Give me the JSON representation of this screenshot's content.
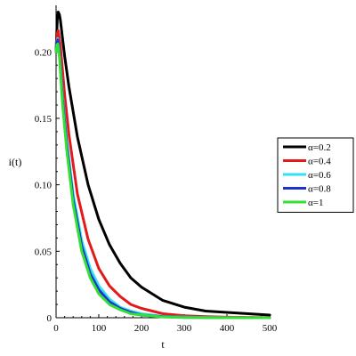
{
  "chart_data": {
    "type": "line",
    "xlabel": "t",
    "ylabel": "i(t)",
    "xlim": [
      0,
      500
    ],
    "ylim": [
      0,
      0.235
    ],
    "xticks": [
      "0",
      "100",
      "200",
      "300",
      "400",
      "500"
    ],
    "yticks": [
      "0",
      "0.05",
      "0.10",
      "0.15",
      "0.20"
    ],
    "legend_position": "right",
    "series": [
      {
        "name": "α=0.2",
        "color": "#000000",
        "x": [
          0,
          3,
          5,
          8,
          10,
          20,
          30,
          50,
          75,
          100,
          125,
          150,
          175,
          200,
          250,
          300,
          350,
          400,
          450,
          500
        ],
        "y": [
          0.2,
          0.225,
          0.23,
          0.228,
          0.224,
          0.197,
          0.174,
          0.136,
          0.1,
          0.074,
          0.055,
          0.041,
          0.03,
          0.023,
          0.013,
          0.008,
          0.005,
          0.004,
          0.003,
          0.002
        ]
      },
      {
        "name": "α=0.4",
        "color": "#e31a1c",
        "x": [
          0,
          3,
          5,
          10,
          20,
          30,
          50,
          75,
          100,
          125,
          150,
          175,
          200,
          250,
          300,
          350,
          400,
          500
        ],
        "y": [
          0.2,
          0.214,
          0.216,
          0.205,
          0.168,
          0.138,
          0.093,
          0.059,
          0.037,
          0.024,
          0.016,
          0.01,
          0.007,
          0.003,
          0.0015,
          0.0008,
          0.0004,
          0.0001
        ]
      },
      {
        "name": "α=0.6",
        "color": "#33e0f0",
        "x": [
          0,
          2,
          4,
          8,
          15,
          25,
          40,
          60,
          80,
          100,
          125,
          150,
          175,
          200,
          250,
          300,
          400,
          500
        ],
        "y": [
          0.2,
          0.208,
          0.21,
          0.2,
          0.168,
          0.133,
          0.093,
          0.058,
          0.037,
          0.024,
          0.014,
          0.008,
          0.005,
          0.003,
          0.001,
          0.0005,
          0.0001,
          0.0
        ]
      },
      {
        "name": "α=0.8",
        "color": "#1f2fd0",
        "x": [
          0,
          2,
          4,
          8,
          15,
          25,
          40,
          60,
          80,
          100,
          125,
          150,
          175,
          200,
          250,
          300,
          400,
          500
        ],
        "y": [
          0.2,
          0.207,
          0.209,
          0.199,
          0.165,
          0.13,
          0.089,
          0.054,
          0.033,
          0.021,
          0.012,
          0.007,
          0.004,
          0.002,
          0.0008,
          0.0003,
          0.0,
          0.0
        ]
      },
      {
        "name": "α=1",
        "color": "#33e033",
        "x": [
          0,
          2,
          4,
          8,
          15,
          25,
          40,
          60,
          80,
          100,
          125,
          150,
          175,
          200,
          250,
          300,
          400,
          500
        ],
        "y": [
          0.2,
          0.205,
          0.206,
          0.196,
          0.161,
          0.126,
          0.085,
          0.05,
          0.03,
          0.018,
          0.01,
          0.006,
          0.003,
          0.002,
          0.0006,
          0.0002,
          0.0,
          0.0
        ]
      }
    ]
  }
}
